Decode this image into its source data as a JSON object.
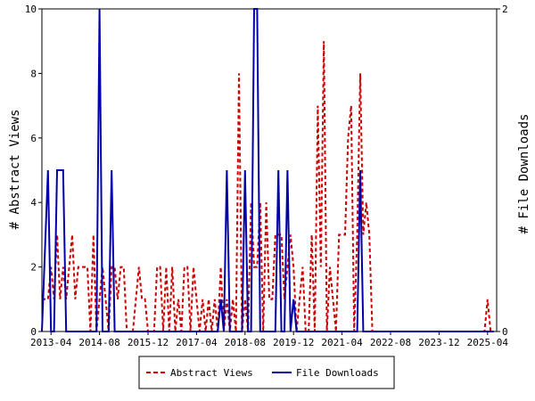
{
  "chart_data": {
    "type": "line",
    "title": "",
    "xlabel": "",
    "ylabel_left": "# Abstract Views",
    "ylabel_right": "# File Downloads",
    "x_range": [
      "2013-01",
      "2025-07"
    ],
    "y_left_range": [
      0,
      10
    ],
    "y_right_range": [
      0,
      2
    ],
    "y_left_ticks": [
      "0",
      "2",
      "4",
      "6",
      "8",
      "10"
    ],
    "y_right_ticks": [
      "0",
      "2"
    ],
    "x_ticks": [
      "2013-04",
      "2014-08",
      "2015-12",
      "2017-04",
      "2018-08",
      "2019-12",
      "2021-04",
      "2022-08",
      "2023-12",
      "2025-04"
    ],
    "grid": false,
    "legend_position": "bottom-center",
    "series": [
      {
        "name": "Abstract Views",
        "axis": "left",
        "color": "#cc0000",
        "line_style": "dashed",
        "points": [
          [
            "2013-01",
            1
          ],
          [
            "2013-02",
            1
          ],
          [
            "2013-03",
            1
          ],
          [
            "2013-04",
            2
          ],
          [
            "2013-05",
            1
          ],
          [
            "2013-06",
            3
          ],
          [
            "2013-07",
            1
          ],
          [
            "2013-08",
            2
          ],
          [
            "2013-09",
            1
          ],
          [
            "2013-10",
            2
          ],
          [
            "2013-11",
            3
          ],
          [
            "2013-12",
            1
          ],
          [
            "2014-01",
            2
          ],
          [
            "2014-02",
            2
          ],
          [
            "2014-03",
            2
          ],
          [
            "2014-04",
            2
          ],
          [
            "2014-05",
            0
          ],
          [
            "2014-06",
            3
          ],
          [
            "2014-07",
            0
          ],
          [
            "2014-08",
            1
          ],
          [
            "2014-09",
            2
          ],
          [
            "2014-10",
            1
          ],
          [
            "2014-11",
            0
          ],
          [
            "2014-12",
            2
          ],
          [
            "2015-01",
            2
          ],
          [
            "2015-02",
            1
          ],
          [
            "2015-03",
            2
          ],
          [
            "2015-04",
            2
          ],
          [
            "2015-05",
            0
          ],
          [
            "2015-06",
            0
          ],
          [
            "2015-07",
            0
          ],
          [
            "2015-08",
            1
          ],
          [
            "2015-09",
            2
          ],
          [
            "2015-10",
            1
          ],
          [
            "2015-11",
            1
          ],
          [
            "2015-12",
            0
          ],
          [
            "2016-01",
            0
          ],
          [
            "2016-02",
            0
          ],
          [
            "2016-03",
            2
          ],
          [
            "2016-04",
            2
          ],
          [
            "2016-05",
            0
          ],
          [
            "2016-06",
            2
          ],
          [
            "2016-07",
            0
          ],
          [
            "2016-08",
            2
          ],
          [
            "2016-09",
            0
          ],
          [
            "2016-10",
            1
          ],
          [
            "2016-11",
            0
          ],
          [
            "2016-12",
            2
          ],
          [
            "2017-01",
            2
          ],
          [
            "2017-02",
            0
          ],
          [
            "2017-03",
            2
          ],
          [
            "2017-04",
            1
          ],
          [
            "2017-05",
            0
          ],
          [
            "2017-06",
            1
          ],
          [
            "2017-07",
            0
          ],
          [
            "2017-08",
            1
          ],
          [
            "2017-09",
            0
          ],
          [
            "2017-10",
            1
          ],
          [
            "2017-11",
            0
          ],
          [
            "2017-12",
            2
          ],
          [
            "2018-01",
            0
          ],
          [
            "2018-02",
            1
          ],
          [
            "2018-03",
            0
          ],
          [
            "2018-04",
            1
          ],
          [
            "2018-05",
            0
          ],
          [
            "2018-06",
            8
          ],
          [
            "2018-07",
            0
          ],
          [
            "2018-08",
            1
          ],
          [
            "2018-09",
            0
          ],
          [
            "2018-10",
            4
          ],
          [
            "2018-11",
            2
          ],
          [
            "2018-12",
            2
          ],
          [
            "2019-01",
            4
          ],
          [
            "2019-02",
            0
          ],
          [
            "2019-03",
            4
          ],
          [
            "2019-04",
            1
          ],
          [
            "2019-05",
            1
          ],
          [
            "2019-06",
            3
          ],
          [
            "2019-07",
            3
          ],
          [
            "2019-08",
            3
          ],
          [
            "2019-09",
            1
          ],
          [
            "2019-10",
            2
          ],
          [
            "2019-11",
            3
          ],
          [
            "2019-12",
            2
          ],
          [
            "2020-01",
            0
          ],
          [
            "2020-02",
            1
          ],
          [
            "2020-03",
            2
          ],
          [
            "2020-04",
            0
          ],
          [
            "2020-05",
            0
          ],
          [
            "2020-06",
            3
          ],
          [
            "2020-07",
            0
          ],
          [
            "2020-08",
            7
          ],
          [
            "2020-09",
            2
          ],
          [
            "2020-10",
            9
          ],
          [
            "2020-11",
            0
          ],
          [
            "2020-12",
            2
          ],
          [
            "2021-01",
            1
          ],
          [
            "2021-02",
            0
          ],
          [
            "2021-03",
            3
          ],
          [
            "2021-04",
            3
          ],
          [
            "2021-05",
            3
          ],
          [
            "2021-06",
            6
          ],
          [
            "2021-07",
            7
          ],
          [
            "2021-08",
            0
          ],
          [
            "2021-09",
            3
          ],
          [
            "2021-10",
            8
          ],
          [
            "2021-11",
            3
          ],
          [
            "2021-12",
            4
          ],
          [
            "2022-01",
            3
          ],
          [
            "2022-02",
            0
          ],
          [
            "2022-03",
            0
          ],
          [
            "2022-04",
            0
          ],
          [
            "2022-05",
            0
          ],
          [
            "2022-06",
            0
          ],
          [
            "2022-07",
            0
          ],
          [
            "2022-08",
            0
          ],
          [
            "2022-09",
            0
          ],
          [
            "2022-10",
            0
          ],
          [
            "2022-11",
            0
          ],
          [
            "2022-12",
            0
          ],
          [
            "2023-01",
            0
          ],
          [
            "2023-02",
            0
          ],
          [
            "2023-03",
            0
          ],
          [
            "2023-04",
            0
          ],
          [
            "2023-05",
            0
          ],
          [
            "2023-06",
            0
          ],
          [
            "2023-07",
            0
          ],
          [
            "2023-08",
            0
          ],
          [
            "2023-09",
            0
          ],
          [
            "2023-10",
            0
          ],
          [
            "2023-11",
            0
          ],
          [
            "2023-12",
            0
          ],
          [
            "2024-01",
            0
          ],
          [
            "2024-02",
            0
          ],
          [
            "2024-03",
            0
          ],
          [
            "2024-04",
            0
          ],
          [
            "2024-05",
            0
          ],
          [
            "2024-06",
            0
          ],
          [
            "2024-07",
            0
          ],
          [
            "2024-08",
            0
          ],
          [
            "2024-09",
            0
          ],
          [
            "2024-10",
            0
          ],
          [
            "2024-11",
            0
          ],
          [
            "2024-12",
            0
          ],
          [
            "2025-01",
            0
          ],
          [
            "2025-02",
            0
          ],
          [
            "2025-03",
            0
          ],
          [
            "2025-04",
            1
          ],
          [
            "2025-05",
            0
          ],
          [
            "2025-06",
            0
          ]
        ]
      },
      {
        "name": "File Downloads",
        "axis": "right",
        "color": "#0000aa",
        "line_style": "solid",
        "points": [
          [
            "2013-01",
            0
          ],
          [
            "2013-02",
            0.5
          ],
          [
            "2013-03",
            1
          ],
          [
            "2013-04",
            0
          ],
          [
            "2013-05",
            0
          ],
          [
            "2013-06",
            1
          ],
          [
            "2013-07",
            1
          ],
          [
            "2013-08",
            1
          ],
          [
            "2013-09",
            0
          ],
          [
            "2013-10",
            0
          ],
          [
            "2014-01",
            0
          ],
          [
            "2014-02",
            0
          ],
          [
            "2014-03",
            0
          ],
          [
            "2014-04",
            0
          ],
          [
            "2014-05",
            0
          ],
          [
            "2014-06",
            0
          ],
          [
            "2014-07",
            0
          ],
          [
            "2014-08",
            2
          ],
          [
            "2014-09",
            0
          ],
          [
            "2014-10",
            0
          ],
          [
            "2014-11",
            0
          ],
          [
            "2014-12",
            1
          ],
          [
            "2015-01",
            0
          ],
          [
            "2015-06",
            0
          ],
          [
            "2016-01",
            0
          ],
          [
            "2016-06",
            0
          ],
          [
            "2017-01",
            0
          ],
          [
            "2017-06",
            0
          ],
          [
            "2017-11",
            0
          ],
          [
            "2017-12",
            0.2
          ],
          [
            "2018-01",
            0
          ],
          [
            "2018-02",
            1
          ],
          [
            "2018-03",
            0
          ],
          [
            "2018-06",
            0
          ],
          [
            "2018-07",
            0
          ],
          [
            "2018-08",
            1
          ],
          [
            "2018-09",
            0
          ],
          [
            "2018-10",
            0
          ],
          [
            "2018-11",
            2
          ],
          [
            "2018-12",
            2
          ],
          [
            "2019-01",
            0
          ],
          [
            "2019-06",
            0
          ],
          [
            "2019-07",
            1
          ],
          [
            "2019-08",
            0
          ],
          [
            "2019-09",
            0
          ],
          [
            "2019-10",
            1
          ],
          [
            "2019-11",
            0
          ],
          [
            "2019-12",
            0.2
          ],
          [
            "2020-01",
            0
          ],
          [
            "2020-06",
            0
          ],
          [
            "2021-01",
            0
          ],
          [
            "2021-06",
            0
          ],
          [
            "2021-09",
            0
          ],
          [
            "2021-10",
            1
          ],
          [
            "2021-11",
            0
          ],
          [
            "2021-12",
            0
          ],
          [
            "2022-06",
            0
          ],
          [
            "2023-01",
            0
          ],
          [
            "2024-01",
            0
          ],
          [
            "2025-01",
            0
          ],
          [
            "2025-06",
            0
          ]
        ]
      }
    ]
  }
}
